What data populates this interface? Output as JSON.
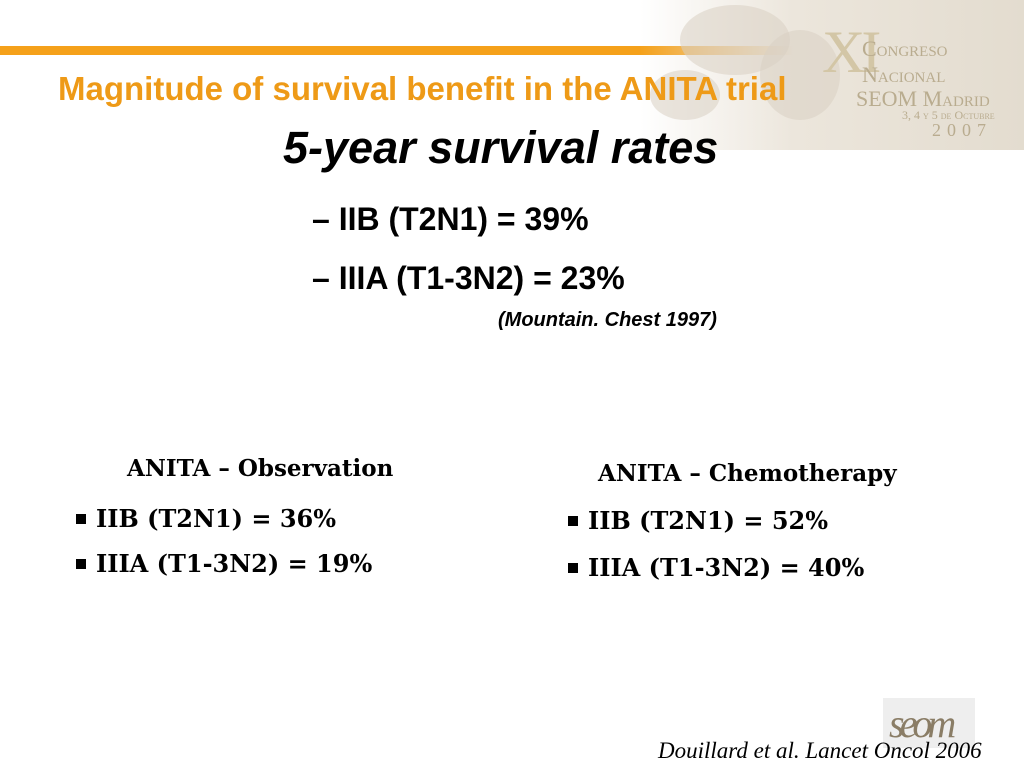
{
  "header": {
    "title": "Magnitude of survival benefit in the ANITA trial",
    "accent_color": "#f5a11a",
    "title_color": "#ee9a17"
  },
  "congress_logo": {
    "numeral": "XI",
    "line1": "Congreso",
    "line2": "Nacional",
    "line3": "SEOM Madrid",
    "line4": "3, 4 y 5 de Octubre",
    "year": "2007"
  },
  "main": {
    "subtitle": "5-year survival rates",
    "stats": [
      "– IIB (T2N1) = 39%",
      "– IIIA (T1-3N2) = 23%"
    ],
    "reference": "(Mountain. Chest 1997)"
  },
  "arms": [
    {
      "heading": "ANITA – Observation",
      "items": [
        "IIB (T2N1) = 36%",
        "IIIA (T1-3N2) = 19%"
      ]
    },
    {
      "heading": "ANITA – Chemotherapy",
      "items": [
        "IIB (T2N1) = 52%",
        "IIIA (T1-3N2) = 40%"
      ]
    }
  ],
  "footer": {
    "logo_text": "seom",
    "citation": "Douillard et al. Lancet Oncol 2006"
  }
}
